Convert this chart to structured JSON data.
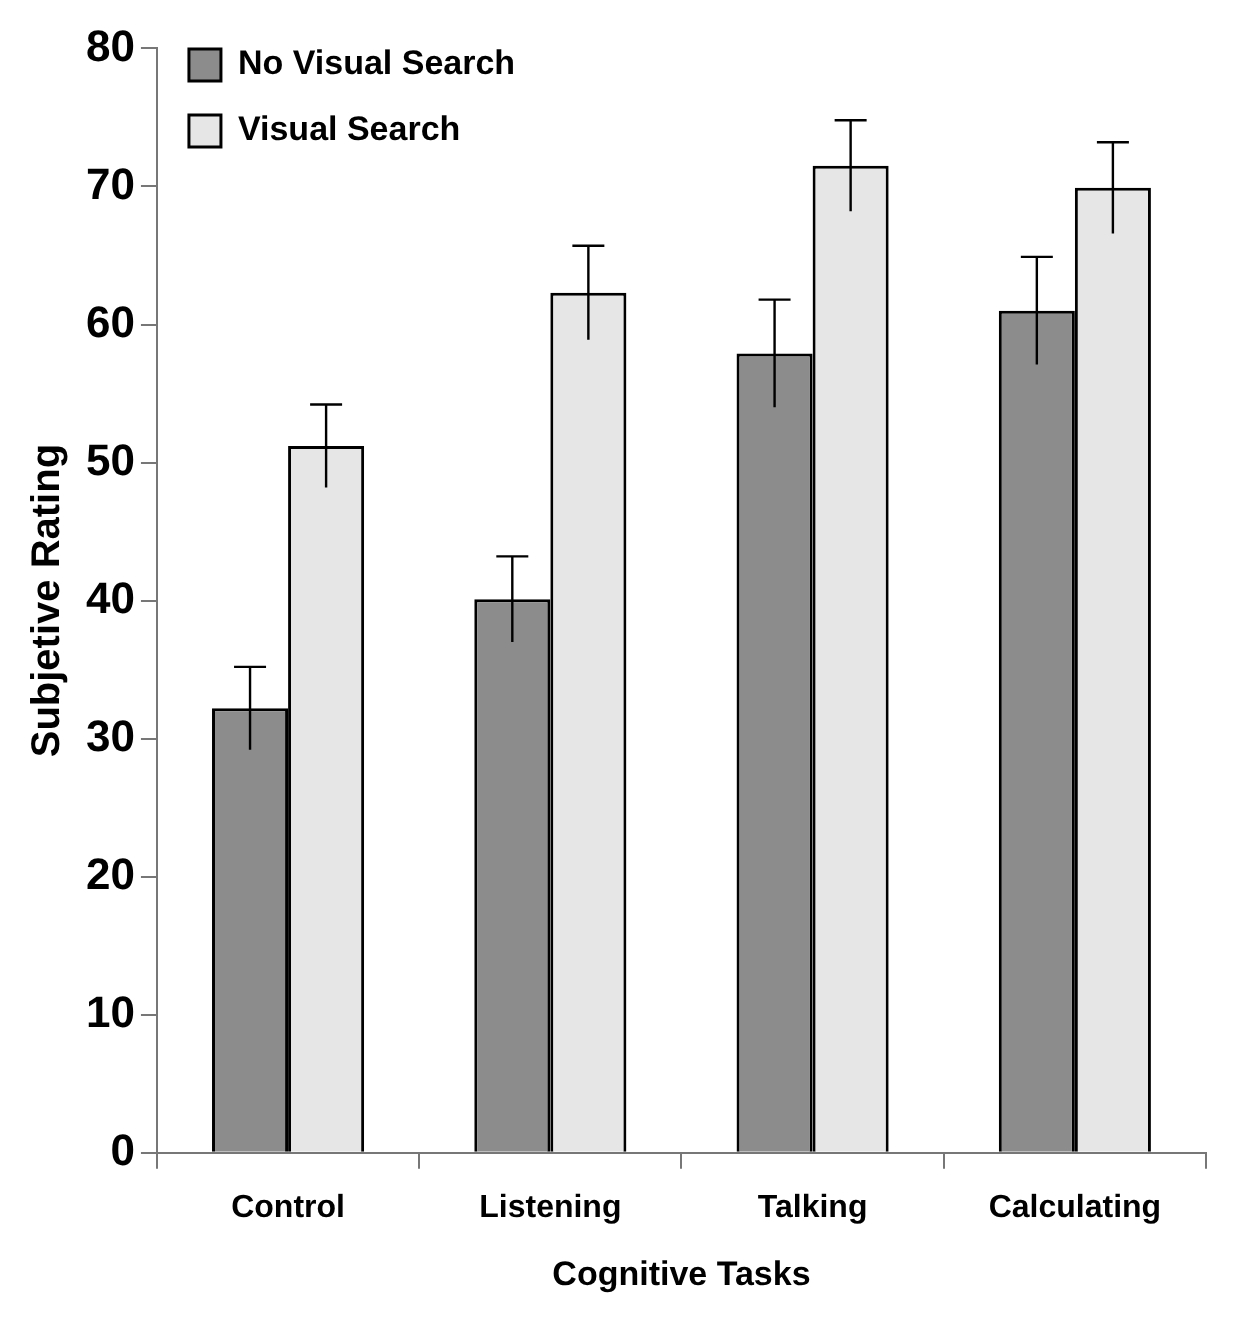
{
  "chart_data": {
    "type": "bar",
    "xlabel": "Cognitive Tasks",
    "ylabel": "Subjetive Rating",
    "categories": [
      "Control",
      "Listening",
      "Talking",
      "Calculating"
    ],
    "series": [
      {
        "name": "No Visual Search",
        "color": "#8c8c8c",
        "values": [
          32.2,
          40.1,
          57.9,
          61.0
        ],
        "errors": [
          3.0,
          3.1,
          3.9,
          3.9
        ]
      },
      {
        "name": "Visual Search",
        "color": "#e6e6e6",
        "values": [
          51.2,
          62.3,
          71.5,
          69.9
        ],
        "errors": [
          3.0,
          3.4,
          3.3,
          3.3
        ]
      }
    ],
    "ylim": [
      0,
      80
    ],
    "yticks": [
      0,
      10,
      20,
      30,
      40,
      50,
      60,
      70,
      80
    ],
    "grid": false,
    "legend": "top left"
  }
}
